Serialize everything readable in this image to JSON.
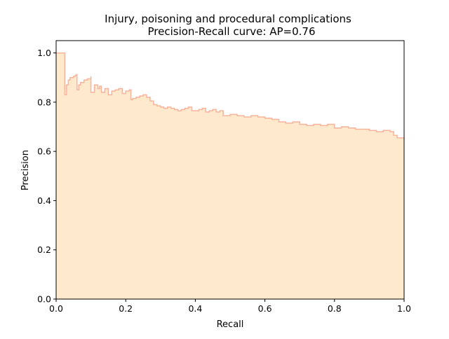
{
  "chart_data": {
    "type": "area",
    "title": "Injury, poisoning and procedural complications",
    "subtitle": "Precision-Recall curve: AP=0.76",
    "xlabel": "Recall",
    "ylabel": "Precision",
    "xlim": [
      0.0,
      1.0
    ],
    "ylim": [
      0.0,
      1.05
    ],
    "xticks": [
      "0.0",
      "0.2",
      "0.4",
      "0.6",
      "0.8",
      "1.0"
    ],
    "yticks": [
      "0.0",
      "0.2",
      "0.4",
      "0.6",
      "0.8",
      "1.0"
    ],
    "grid": false,
    "legend": "none",
    "fill_color": "#ffe9cc",
    "line_color": "#f7b39c",
    "series": [
      {
        "recall": [
          0.0,
          0.025,
          0.025,
          0.03,
          0.035,
          0.04,
          0.05,
          0.055,
          0.06,
          0.06,
          0.065,
          0.07,
          0.08,
          0.09,
          0.1,
          0.1,
          0.11,
          0.12,
          0.125,
          0.13,
          0.14,
          0.15,
          0.16,
          0.17,
          0.18,
          0.19,
          0.2,
          0.21,
          0.215,
          0.22,
          0.23,
          0.24,
          0.25,
          0.26,
          0.27,
          0.28,
          0.29,
          0.3,
          0.31,
          0.32,
          0.33,
          0.34,
          0.35,
          0.36,
          0.37,
          0.38,
          0.39,
          0.4,
          0.41,
          0.42,
          0.43,
          0.44,
          0.45,
          0.46,
          0.47,
          0.48,
          0.5,
          0.52,
          0.54,
          0.56,
          0.58,
          0.6,
          0.62,
          0.64,
          0.66,
          0.68,
          0.7,
          0.72,
          0.74,
          0.76,
          0.78,
          0.8,
          0.82,
          0.84,
          0.86,
          0.88,
          0.9,
          0.92,
          0.94,
          0.96,
          0.97,
          0.98,
          1.0
        ],
        "precision": [
          1.0,
          1.0,
          0.83,
          0.87,
          0.89,
          0.9,
          0.905,
          0.91,
          0.915,
          0.85,
          0.87,
          0.88,
          0.89,
          0.895,
          0.905,
          0.84,
          0.87,
          0.855,
          0.865,
          0.84,
          0.855,
          0.83,
          0.845,
          0.85,
          0.855,
          0.835,
          0.845,
          0.85,
          0.81,
          0.815,
          0.82,
          0.825,
          0.83,
          0.82,
          0.805,
          0.79,
          0.785,
          0.78,
          0.775,
          0.78,
          0.775,
          0.77,
          0.765,
          0.77,
          0.775,
          0.78,
          0.765,
          0.765,
          0.77,
          0.775,
          0.76,
          0.765,
          0.77,
          0.76,
          0.765,
          0.745,
          0.75,
          0.745,
          0.74,
          0.745,
          0.74,
          0.735,
          0.73,
          0.72,
          0.715,
          0.72,
          0.71,
          0.705,
          0.71,
          0.705,
          0.71,
          0.695,
          0.7,
          0.695,
          0.69,
          0.69,
          0.685,
          0.68,
          0.685,
          0.68,
          0.665,
          0.655,
          0.65
        ]
      }
    ]
  }
}
